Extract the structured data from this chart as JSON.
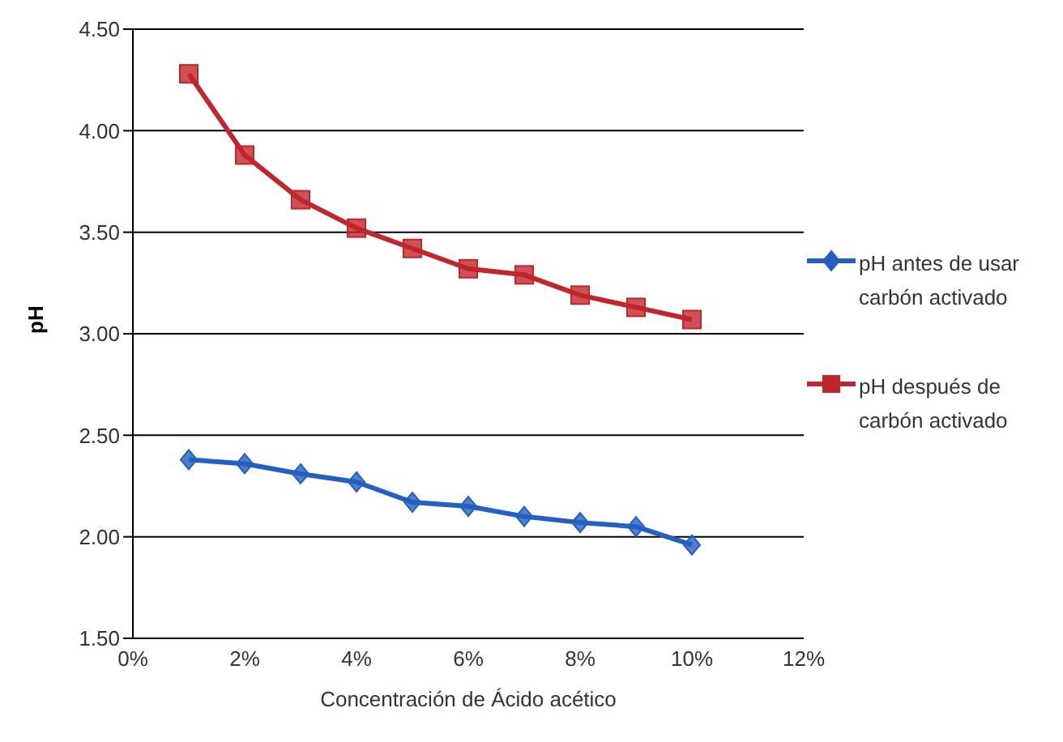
{
  "chart_data": {
    "type": "line",
    "xlabel": "Concentración de Ácido acético",
    "ylabel": "pH",
    "x": [
      0.01,
      0.02,
      0.03,
      0.04,
      0.05,
      0.06,
      0.07,
      0.08,
      0.09,
      0.1
    ],
    "xlim": [
      0,
      0.12
    ],
    "xticks": [
      {
        "value": 0,
        "label": "0%"
      },
      {
        "value": 0.02,
        "label": "2%"
      },
      {
        "value": 0.04,
        "label": "4%"
      },
      {
        "value": 0.06,
        "label": "6%"
      },
      {
        "value": 0.08,
        "label": "8%"
      },
      {
        "value": 0.1,
        "label": "10%"
      },
      {
        "value": 0.12,
        "label": "12%"
      }
    ],
    "ylim": [
      1.5,
      4.5
    ],
    "yticks": [
      {
        "value": 1.5,
        "label": "1.50"
      },
      {
        "value": 2,
        "label": "2.00"
      },
      {
        "value": 2.5,
        "label": "2.50"
      },
      {
        "value": 3,
        "label": "3.00"
      },
      {
        "value": 3.5,
        "label": "3.50"
      },
      {
        "value": 4,
        "label": "4.00"
      },
      {
        "value": 4.5,
        "label": "4.50"
      }
    ],
    "grid": "y",
    "legend": "right",
    "series": [
      {
        "name": "pH antes de usar carbón activado",
        "color": "#2360c0",
        "marker": "diamond",
        "values": [
          2.38,
          2.36,
          2.31,
          2.27,
          2.17,
          2.15,
          2.1,
          2.07,
          2.05,
          1.96
        ]
      },
      {
        "name": "pH después de carbón activado",
        "color": "#c0262b",
        "marker": "square",
        "values": [
          4.28,
          3.88,
          3.66,
          3.52,
          3.42,
          3.32,
          3.29,
          3.19,
          3.13,
          3.07
        ]
      }
    ]
  }
}
